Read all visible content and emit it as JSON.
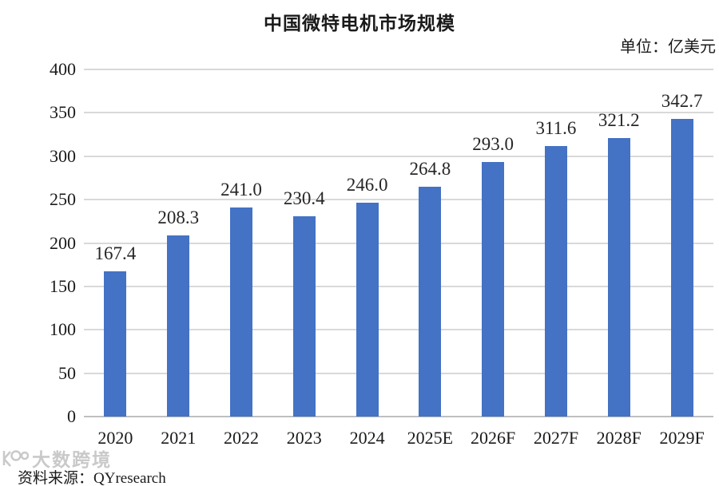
{
  "page": {
    "title": "中国微特电机市场规模",
    "unit_label": "单位：亿美元",
    "source_label": "资料来源：QYresearch",
    "watermark_text": "大数跨境"
  },
  "colors": {
    "bar": "#4472C4",
    "gridline": "#D9D9D9",
    "axis_line": "#BFBFBF",
    "text": "#1A1A1A",
    "watermark": "#BCBCBC"
  },
  "chart_data": {
    "type": "bar",
    "title": "中国微特电机市场规模",
    "unit": "亿美元",
    "categories": [
      "2020",
      "2021",
      "2022",
      "2023",
      "2024",
      "2025E",
      "2026F",
      "2027F",
      "2028F",
      "2029F"
    ],
    "values": [
      167.4,
      208.3,
      241.0,
      230.4,
      246.0,
      264.8,
      293.0,
      311.6,
      321.2,
      342.7
    ],
    "value_labels": [
      "167.4",
      "208.3",
      "241.0",
      "230.4",
      "246.0",
      "264.8",
      "293.0",
      "311.6",
      "321.2",
      "342.7"
    ],
    "xlabel": "",
    "ylabel": "",
    "ylim": [
      0,
      400
    ],
    "yticks": [
      0,
      50,
      100,
      150,
      200,
      250,
      300,
      350,
      400
    ],
    "grid": true,
    "legend": "none",
    "source": "QYresearch"
  }
}
